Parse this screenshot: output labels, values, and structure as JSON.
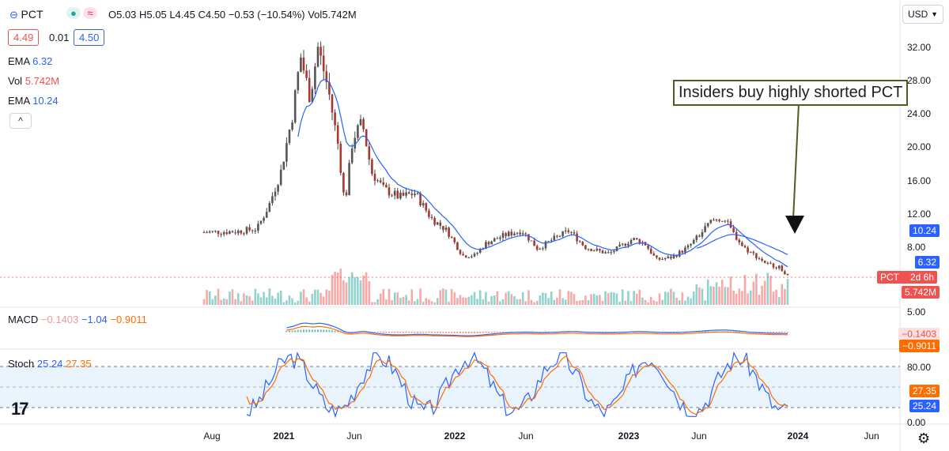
{
  "header": {
    "symbol": "PCT",
    "ohlc": "O5.03 H5.05 L4.45 C4.50 −0.53 (−10.54%) Vol5.742M",
    "bid": "4.49",
    "spread": "0.01",
    "ask": "4.50"
  },
  "indicators": {
    "ema1_label": "EMA",
    "ema1_value": "6.32",
    "vol_label": "Vol",
    "vol_value": "5.742M",
    "ema2_label": "EMA",
    "ema2_value": "10.24",
    "collapse": "^"
  },
  "macd": {
    "label": "MACD",
    "hist": "−0.1403",
    "macd": "−1.04",
    "signal": "−0.9011"
  },
  "stoch": {
    "label": "Stoch",
    "k": "25.24",
    "d": "27.35"
  },
  "currency": "USD",
  "callout": "Insiders buy highly shorted PCT",
  "price_axis": [
    "32.00",
    "28.00",
    "24.00",
    "20.00",
    "16.00",
    "12.00",
    "8.00",
    "5.00"
  ],
  "price_tags": {
    "ema2": "10.24",
    "ema1": "6.32",
    "last": "PCT",
    "countdown": "2d 6h",
    "vol": "5.742M"
  },
  "macd_axis_tags": {
    "hist": "−0.1403",
    "signal": "−0.9011"
  },
  "stoch_axis": [
    "80.00",
    "0.00"
  ],
  "stoch_tags": {
    "d": "27.35",
    "k": "25.24"
  },
  "time_axis": [
    "Aug",
    "2021",
    "Jun",
    "2022",
    "Jun",
    "2023",
    "Jun",
    "2024",
    "Jun"
  ],
  "colors": {
    "up": "#26a69a",
    "down": "#ef5350",
    "ema_blue": "#2962ff",
    "macd_orange": "#ff6d00"
  }
}
